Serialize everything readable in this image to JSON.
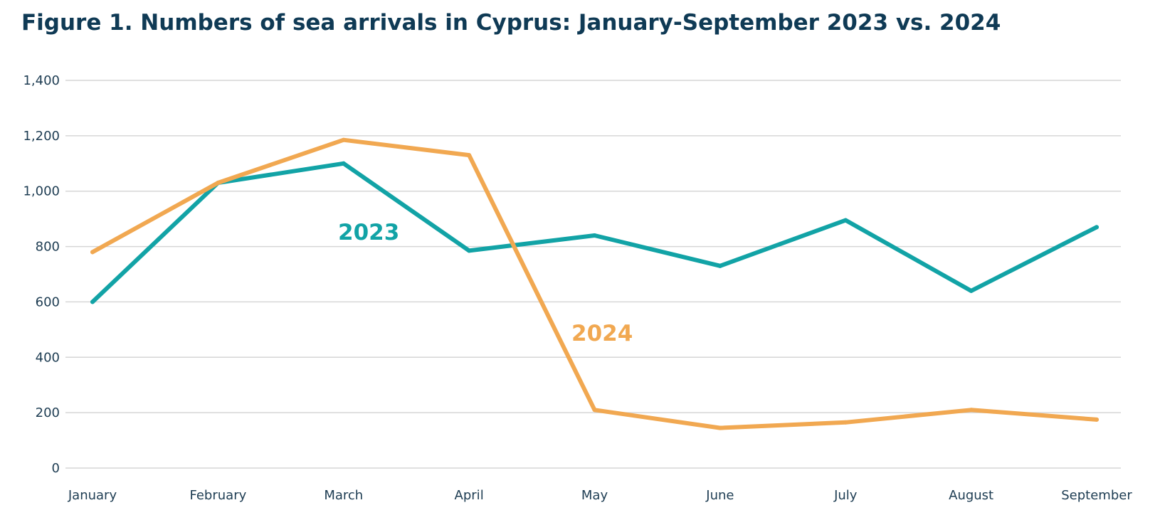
{
  "chart_data": {
    "type": "line",
    "title": "Figure 1. Numbers of sea arrivals in Cyprus: January-September 2023 vs. 2024",
    "xlabel": "",
    "ylabel": "",
    "categories": [
      "January",
      "February",
      "March",
      "April",
      "May",
      "June",
      "July",
      "August",
      "September"
    ],
    "ylim": [
      0,
      1400
    ],
    "yticks": [
      0,
      200,
      400,
      600,
      800,
      1000,
      1200,
      1400
    ],
    "ytick_labels": [
      "0",
      "200",
      "400",
      "600",
      "800",
      "1,000",
      "1,200",
      "1,400"
    ],
    "grid": true,
    "legend": "inline labels",
    "series": [
      {
        "name": "2023",
        "color": "#12a3a6",
        "values": [
          600,
          1030,
          1100,
          785,
          840,
          730,
          895,
          640,
          870
        ]
      },
      {
        "name": "2024",
        "color": "#f1a851",
        "values": [
          780,
          1030,
          1185,
          1130,
          210,
          145,
          165,
          210,
          175
        ]
      }
    ]
  }
}
